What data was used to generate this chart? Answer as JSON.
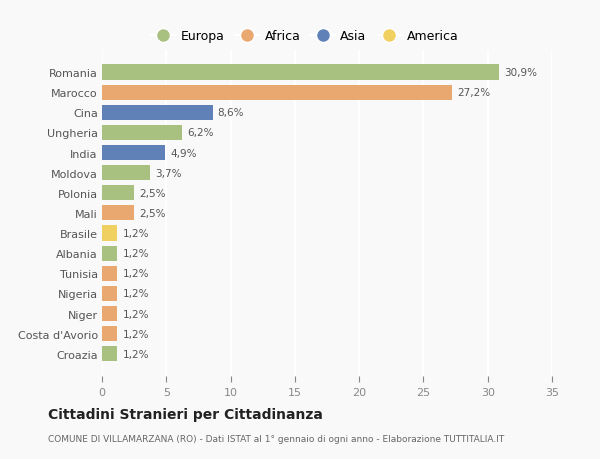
{
  "countries": [
    "Romania",
    "Marocco",
    "Cina",
    "Ungheria",
    "India",
    "Moldova",
    "Polonia",
    "Mali",
    "Brasile",
    "Albania",
    "Tunisia",
    "Nigeria",
    "Niger",
    "Costa d'Avorio",
    "Croazia"
  ],
  "values": [
    30.9,
    27.2,
    8.6,
    6.2,
    4.9,
    3.7,
    2.5,
    2.5,
    1.2,
    1.2,
    1.2,
    1.2,
    1.2,
    1.2,
    1.2
  ],
  "labels": [
    "30,9%",
    "27,2%",
    "8,6%",
    "6,2%",
    "4,9%",
    "3,7%",
    "2,5%",
    "2,5%",
    "1,2%",
    "1,2%",
    "1,2%",
    "1,2%",
    "1,2%",
    "1,2%",
    "1,2%"
  ],
  "continents": [
    "Europa",
    "Africa",
    "Asia",
    "Europa",
    "Asia",
    "Europa",
    "Europa",
    "Africa",
    "America",
    "Europa",
    "Africa",
    "Africa",
    "Africa",
    "Africa",
    "Europa"
  ],
  "colors": {
    "Europa": "#a8c080",
    "Africa": "#e8a870",
    "Asia": "#6080b8",
    "America": "#f0d060"
  },
  "legend_order": [
    "Europa",
    "Africa",
    "Asia",
    "America"
  ],
  "xlim": [
    0,
    35
  ],
  "xticks": [
    0,
    5,
    10,
    15,
    20,
    25,
    30,
    35
  ],
  "title": "Cittadini Stranieri per Cittadinanza",
  "subtitle": "COMUNE DI VILLAMARZANA (RO) - Dati ISTAT al 1° gennaio di ogni anno - Elaborazione TUTTITALIA.IT",
  "bg_color": "#f9f9f9",
  "grid_color": "#ffffff",
  "bar_height": 0.75
}
